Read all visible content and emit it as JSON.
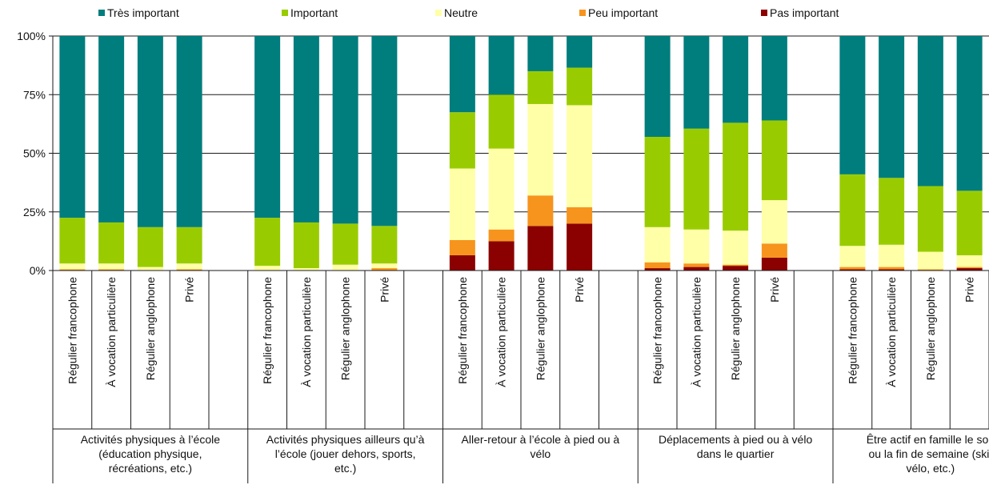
{
  "chart_data": {
    "type": "bar",
    "stacked": true,
    "percent": true,
    "yticks": [
      "0%",
      "25%",
      "50%",
      "75%",
      "100%"
    ],
    "ylim": [
      0,
      100
    ],
    "grid": true,
    "legend_position": "top",
    "series": [
      {
        "name": "Pas important",
        "color": "#8b0000"
      },
      {
        "name": "Peu important",
        "color": "#f7941d"
      },
      {
        "name": "Neutre",
        "color": "#ffffa8"
      },
      {
        "name": "Important",
        "color": "#99cc00"
      },
      {
        "name": "Très important",
        "color": "#007d7d"
      }
    ],
    "legend_order": [
      "Très important",
      "Important",
      "Neutre",
      "Peu important",
      "Pas important"
    ],
    "groups": [
      {
        "label": "Activités physiques à l’école (éducation physique, récréations, etc.)",
        "label_lines": [
          "Activités physiques à l’école",
          "(éducation physique,",
          "récréations, etc.)"
        ],
        "bars": [
          {
            "category": "Régulier francophone",
            "values": [
              0,
              0.5,
              2.5,
              19.5,
              77.5
            ]
          },
          {
            "category": "À vocation particulière",
            "values": [
              0,
              0.5,
              2.5,
              17.5,
              79.5
            ]
          },
          {
            "category": "Régulier anglophone",
            "values": [
              0,
              0,
              1.5,
              17,
              81.5
            ]
          },
          {
            "category": "Privé",
            "values": [
              0,
              0.5,
              2.5,
              15.5,
              81.5
            ]
          }
        ]
      },
      {
        "label": "Activités physiques ailleurs qu’à l’école (jouer dehors, sports, etc.)",
        "label_lines": [
          "Activités physiques ailleurs qu’à",
          "l’école (jouer dehors, sports,",
          "etc.)"
        ],
        "bars": [
          {
            "category": "Régulier francophone",
            "values": [
              0,
              0,
              2,
              20.5,
              77.5
            ]
          },
          {
            "category": "À vocation particulière",
            "values": [
              0,
              0,
              1,
              19.5,
              79.5
            ]
          },
          {
            "category": "Régulier anglophone",
            "values": [
              0,
              0,
              2.5,
              17.5,
              80
            ]
          },
          {
            "category": "Privé",
            "values": [
              0,
              1,
              2,
              16,
              81
            ]
          }
        ]
      },
      {
        "label": "Aller-retour à l’école à pied ou à vélo",
        "label_lines": [
          "Aller-retour à l’école à pied ou à",
          "vélo"
        ],
        "bars": [
          {
            "category": "Régulier francophone",
            "values": [
              6.5,
              6.5,
              30.5,
              24,
              32.5
            ]
          },
          {
            "category": "À vocation particulière",
            "values": [
              12.5,
              5,
              34.5,
              23,
              25
            ]
          },
          {
            "category": "Régulier anglophone",
            "values": [
              19,
              13,
              39,
              14,
              15
            ]
          },
          {
            "category": "Privé",
            "values": [
              20,
              7,
              43.5,
              16,
              13.5
            ]
          }
        ]
      },
      {
        "label": "Déplacements à pied ou à vélo dans le quartier",
        "label_lines": [
          "Déplacements à pied ou à vélo",
          "dans le quartier"
        ],
        "bars": [
          {
            "category": "Régulier francophone",
            "values": [
              1,
              2.5,
              15,
              38.5,
              43
            ]
          },
          {
            "category": "À vocation particulière",
            "values": [
              1.5,
              1.5,
              14.5,
              43,
              39.5
            ]
          },
          {
            "category": "Régulier anglophone",
            "values": [
              2,
              0.5,
              14.5,
              46,
              37
            ]
          },
          {
            "category": "Privé",
            "values": [
              5.5,
              6,
              18.5,
              34,
              36
            ]
          }
        ]
      },
      {
        "label": "Être actif en famille le soir ou la fin de semaine (ski, vélo, etc.)",
        "label_lines": [
          "Être actif en famille le soir",
          "ou la fin de semaine (ski,",
          "vélo, etc.)"
        ],
        "bars": [
          {
            "category": "Régulier francophone",
            "values": [
              0.5,
              1,
              9,
              30.5,
              59
            ]
          },
          {
            "category": "À vocation particulière",
            "values": [
              0.5,
              1,
              9.5,
              28.5,
              60.5
            ]
          },
          {
            "category": "Régulier anglophone",
            "values": [
              0,
              0.5,
              7.5,
              28,
              64
            ]
          },
          {
            "category": "Privé",
            "values": [
              1,
              0.5,
              5,
              27.5,
              66
            ]
          }
        ]
      }
    ]
  }
}
